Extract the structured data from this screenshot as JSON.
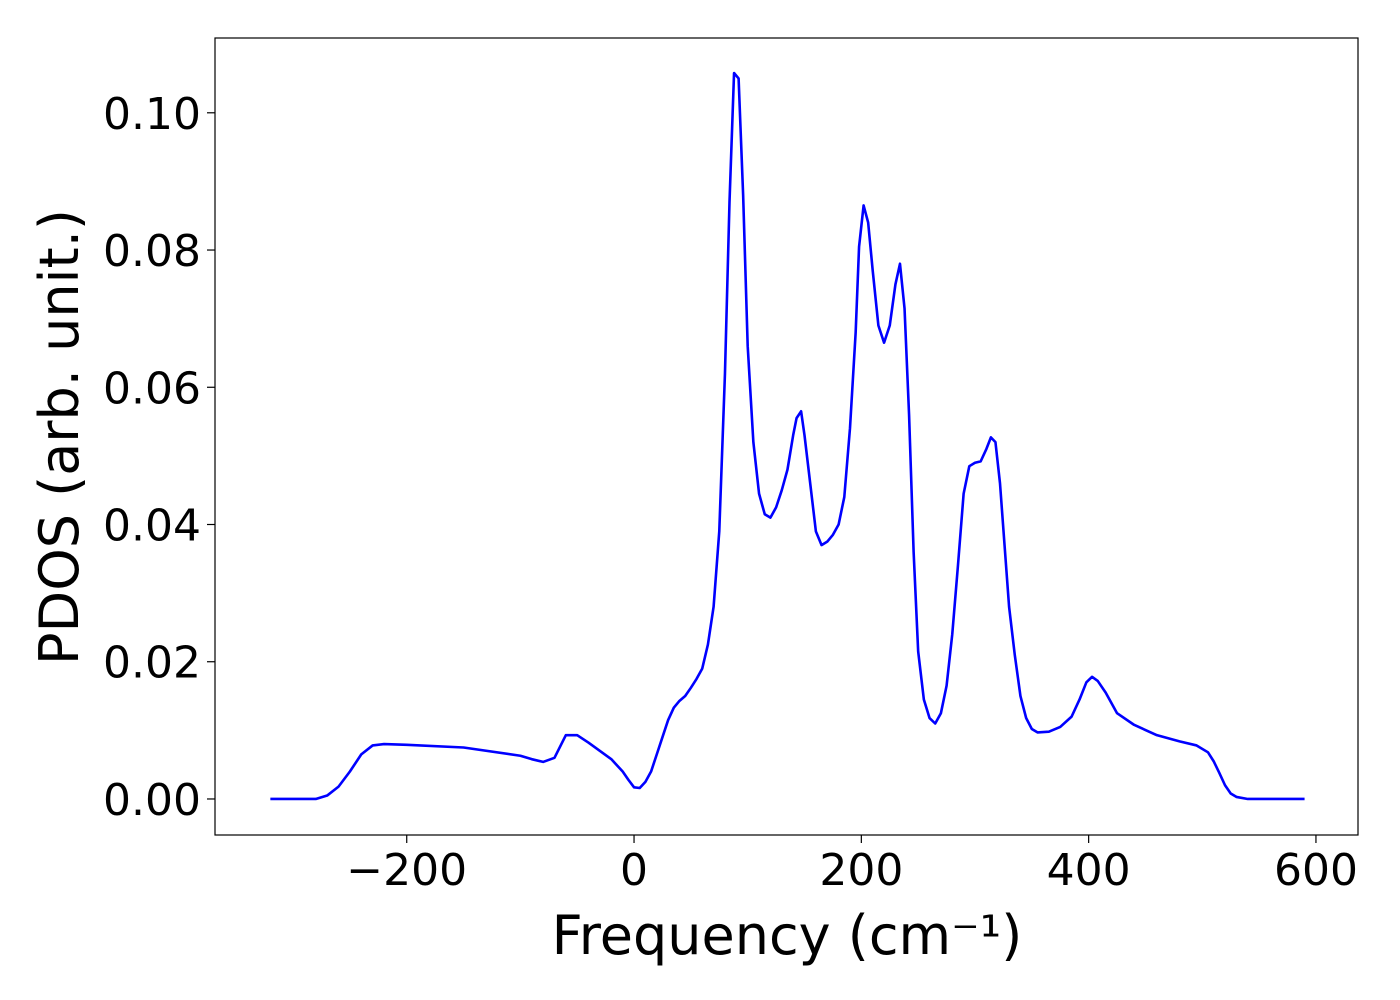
{
  "chart_data": {
    "type": "line",
    "xlabel": "Frequency (cm⁻¹)",
    "ylabel": "PDOS (arb. unit.)",
    "color": "#0000ff",
    "x": [
      -320,
      -280,
      -270,
      -260,
      -250,
      -240,
      -230,
      -220,
      -200,
      -150,
      -100,
      -90,
      -80,
      -70,
      -60,
      -50,
      -40,
      -30,
      -20,
      -10,
      -5,
      0,
      5,
      10,
      15,
      20,
      25,
      30,
      35,
      40,
      45,
      50,
      55,
      60,
      65,
      70,
      75,
      80,
      84,
      88,
      92,
      96,
      100,
      105,
      110,
      115,
      120,
      125,
      130,
      135,
      140,
      143,
      147,
      150,
      155,
      160,
      165,
      170,
      175,
      180,
      185,
      190,
      195,
      198,
      202,
      206,
      210,
      215,
      220,
      225,
      230,
      234,
      238,
      242,
      246,
      250,
      255,
      260,
      265,
      270,
      275,
      280,
      285,
      290,
      295,
      300,
      305,
      310,
      314,
      318,
      322,
      326,
      330,
      335,
      340,
      345,
      350,
      355,
      365,
      375,
      385,
      392,
      398,
      403,
      408,
      415,
      425,
      440,
      460,
      480,
      495,
      505,
      510,
      515,
      520,
      525,
      530,
      540,
      590
    ],
    "values": [
      0,
      0,
      0.0005,
      0.0018,
      0.004,
      0.0065,
      0.0078,
      0.008,
      0.0079,
      0.0075,
      0.0063,
      0.0058,
      0.0054,
      0.006,
      0.0093,
      0.0093,
      0.0082,
      0.007,
      0.0058,
      0.004,
      0.0028,
      0.0017,
      0.0016,
      0.0025,
      0.004,
      0.0065,
      0.009,
      0.0115,
      0.0133,
      0.0143,
      0.015,
      0.0162,
      0.0175,
      0.019,
      0.0225,
      0.028,
      0.039,
      0.062,
      0.087,
      0.1058,
      0.105,
      0.088,
      0.066,
      0.052,
      0.0445,
      0.0415,
      0.041,
      0.0425,
      0.045,
      0.048,
      0.053,
      0.0555,
      0.0565,
      0.053,
      0.046,
      0.039,
      0.037,
      0.0375,
      0.0385,
      0.04,
      0.044,
      0.054,
      0.068,
      0.0805,
      0.0865,
      0.084,
      0.077,
      0.069,
      0.0665,
      0.069,
      0.075,
      0.078,
      0.0715,
      0.056,
      0.036,
      0.0215,
      0.0145,
      0.0118,
      0.011,
      0.0125,
      0.0165,
      0.024,
      0.034,
      0.0445,
      0.0485,
      0.049,
      0.0492,
      0.051,
      0.0527,
      0.052,
      0.046,
      0.037,
      0.028,
      0.021,
      0.015,
      0.0118,
      0.0102,
      0.0097,
      0.0098,
      0.0105,
      0.012,
      0.0145,
      0.017,
      0.0178,
      0.0172,
      0.0155,
      0.0125,
      0.0108,
      0.0093,
      0.0084,
      0.0078,
      0.0068,
      0.0055,
      0.0038,
      0.002,
      0.0008,
      0.0003,
      0,
      0
    ],
    "xlim": [
      -368.7,
      637
    ],
    "ylim": [
      -0.00525,
      0.1109
    ],
    "xticks": [
      {
        "value": -200,
        "label": "−200"
      },
      0,
      200,
      400,
      600
    ],
    "yticks": [
      {
        "value": 0,
        "label": "0.00"
      },
      {
        "value": 0.02,
        "label": "0.02"
      },
      {
        "value": 0.04,
        "label": "0.04"
      },
      {
        "value": 0.06,
        "label": "0.06"
      },
      {
        "value": 0.08,
        "label": "0.08"
      },
      {
        "value": 0.1,
        "label": "0.10"
      }
    ]
  }
}
